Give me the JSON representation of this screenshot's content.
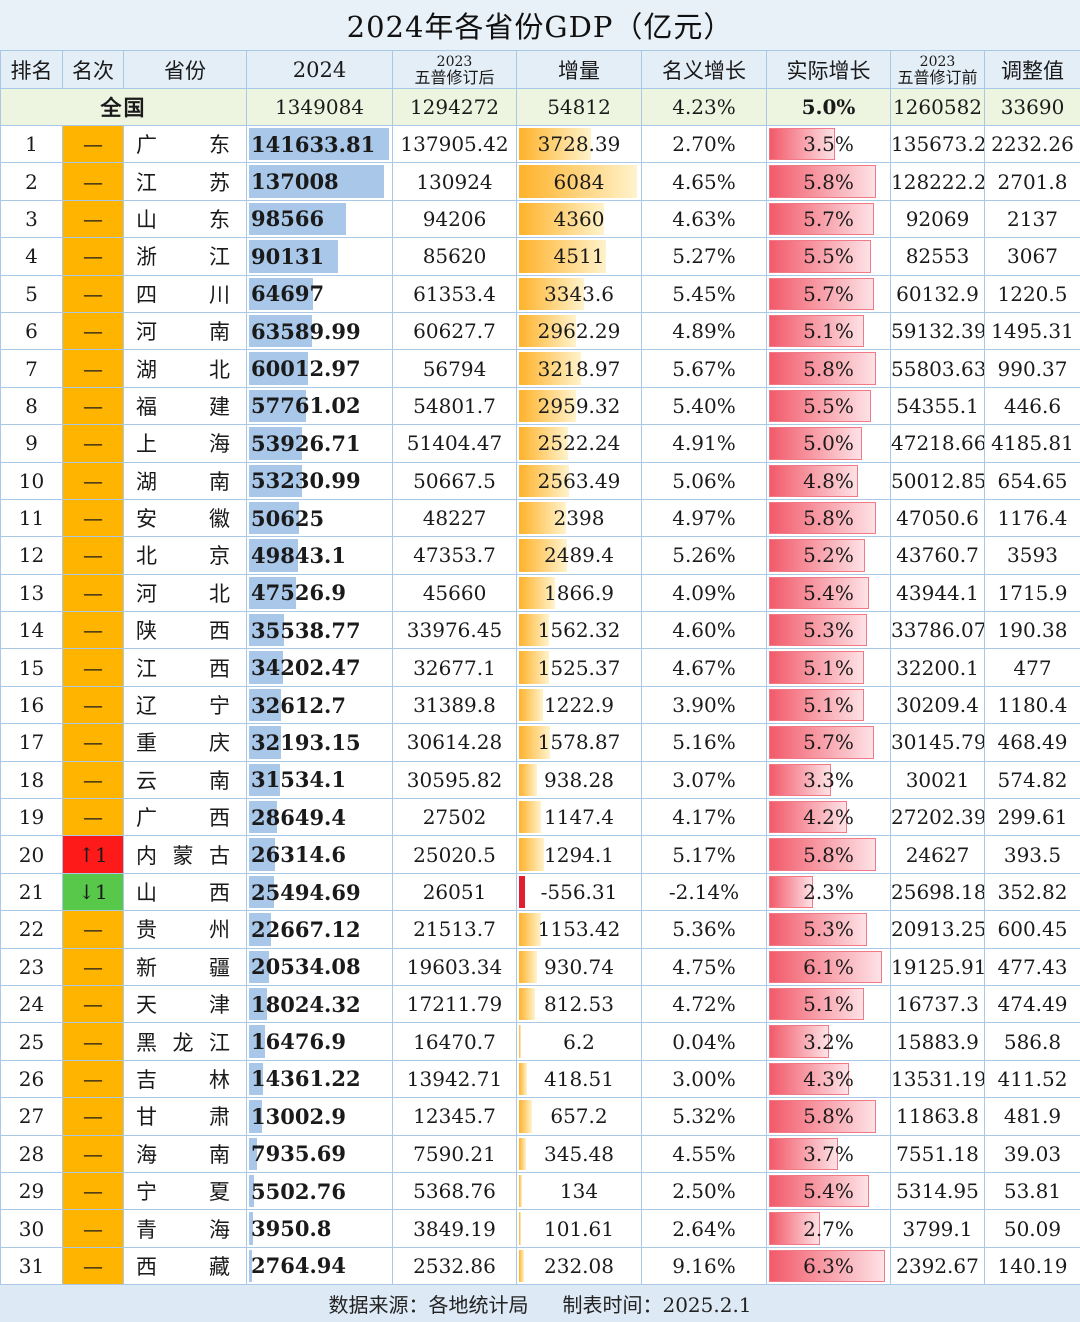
{
  "title": "2024年各省份GDP（亿元）",
  "headers": {
    "rank": "排名",
    "change": "名次",
    "province": "省份",
    "gdp2024": "2024",
    "rev_year": "2023",
    "rev_sub": "五普修订后",
    "increase": "增量",
    "nominal": "名义增长",
    "real": "实际增长",
    "pre_year": "2023",
    "pre_sub": "五普修订前",
    "adjust": "调整值"
  },
  "national": {
    "label": "全国",
    "gdp2024": "1349084",
    "gdp2023_revised": "1294272",
    "increase": "54812",
    "nominal": "4.23%",
    "real": "5.0%",
    "gdp2023_pre": "1260582",
    "adjust": "33690"
  },
  "colors": {
    "gdp_bar": "#a9c7e8",
    "increase_bar": "#ffb22a",
    "real_bar": "#f25a6a",
    "rank_same": "#ffb400",
    "rank_up": "#ff1a1a",
    "rank_down": "#58c84a"
  },
  "chart_data": {
    "type": "table",
    "rows": [
      {
        "rank": "1",
        "change": "—",
        "province": "广东",
        "gdp2024": "141633.81",
        "gdp2023_revised": "137905.42",
        "increase": "3728.39",
        "nominal": "2.70%",
        "real": "3.5%",
        "gdp2023_pre": "135673.2",
        "adjust": "2232.26"
      },
      {
        "rank": "2",
        "change": "—",
        "province": "江苏",
        "gdp2024": "137008",
        "gdp2023_revised": "130924",
        "increase": "6084",
        "nominal": "4.65%",
        "real": "5.8%",
        "gdp2023_pre": "128222.2",
        "adjust": "2701.8"
      },
      {
        "rank": "3",
        "change": "—",
        "province": "山东",
        "gdp2024": "98566",
        "gdp2023_revised": "94206",
        "increase": "4360",
        "nominal": "4.63%",
        "real": "5.7%",
        "gdp2023_pre": "92069",
        "adjust": "2137"
      },
      {
        "rank": "4",
        "change": "—",
        "province": "浙江",
        "gdp2024": "90131",
        "gdp2023_revised": "85620",
        "increase": "4511",
        "nominal": "5.27%",
        "real": "5.5%",
        "gdp2023_pre": "82553",
        "adjust": "3067"
      },
      {
        "rank": "5",
        "change": "—",
        "province": "四川",
        "gdp2024": "64697",
        "gdp2023_revised": "61353.4",
        "increase": "3343.6",
        "nominal": "5.45%",
        "real": "5.7%",
        "gdp2023_pre": "60132.9",
        "adjust": "1220.5"
      },
      {
        "rank": "6",
        "change": "—",
        "province": "河南",
        "gdp2024": "63589.99",
        "gdp2023_revised": "60627.7",
        "increase": "2962.29",
        "nominal": "4.89%",
        "real": "5.1%",
        "gdp2023_pre": "59132.39",
        "adjust": "1495.31"
      },
      {
        "rank": "7",
        "change": "—",
        "province": "湖北",
        "gdp2024": "60012.97",
        "gdp2023_revised": "56794",
        "increase": "3218.97",
        "nominal": "5.67%",
        "real": "5.8%",
        "gdp2023_pre": "55803.63",
        "adjust": "990.37"
      },
      {
        "rank": "8",
        "change": "—",
        "province": "福建",
        "gdp2024": "57761.02",
        "gdp2023_revised": "54801.7",
        "increase": "2959.32",
        "nominal": "5.40%",
        "real": "5.5%",
        "gdp2023_pre": "54355.1",
        "adjust": "446.6"
      },
      {
        "rank": "9",
        "change": "—",
        "province": "上海",
        "gdp2024": "53926.71",
        "gdp2023_revised": "51404.47",
        "increase": "2522.24",
        "nominal": "4.91%",
        "real": "5.0%",
        "gdp2023_pre": "47218.66",
        "adjust": "4185.81"
      },
      {
        "rank": "10",
        "change": "—",
        "province": "湖南",
        "gdp2024": "53230.99",
        "gdp2023_revised": "50667.5",
        "increase": "2563.49",
        "nominal": "5.06%",
        "real": "4.8%",
        "gdp2023_pre": "50012.85",
        "adjust": "654.65"
      },
      {
        "rank": "11",
        "change": "—",
        "province": "安徽",
        "gdp2024": "50625",
        "gdp2023_revised": "48227",
        "increase": "2398",
        "nominal": "4.97%",
        "real": "5.8%",
        "gdp2023_pre": "47050.6",
        "adjust": "1176.4"
      },
      {
        "rank": "12",
        "change": "—",
        "province": "北京",
        "gdp2024": "49843.1",
        "gdp2023_revised": "47353.7",
        "increase": "2489.4",
        "nominal": "5.26%",
        "real": "5.2%",
        "gdp2023_pre": "43760.7",
        "adjust": "3593"
      },
      {
        "rank": "13",
        "change": "—",
        "province": "河北",
        "gdp2024": "47526.9",
        "gdp2023_revised": "45660",
        "increase": "1866.9",
        "nominal": "4.09%",
        "real": "5.4%",
        "gdp2023_pre": "43944.1",
        "adjust": "1715.9"
      },
      {
        "rank": "14",
        "change": "—",
        "province": "陕西",
        "gdp2024": "35538.77",
        "gdp2023_revised": "33976.45",
        "increase": "1562.32",
        "nominal": "4.60%",
        "real": "5.3%",
        "gdp2023_pre": "33786.07",
        "adjust": "190.38"
      },
      {
        "rank": "15",
        "change": "—",
        "province": "江西",
        "gdp2024": "34202.47",
        "gdp2023_revised": "32677.1",
        "increase": "1525.37",
        "nominal": "4.67%",
        "real": "5.1%",
        "gdp2023_pre": "32200.1",
        "adjust": "477"
      },
      {
        "rank": "16",
        "change": "—",
        "province": "辽宁",
        "gdp2024": "32612.7",
        "gdp2023_revised": "31389.8",
        "increase": "1222.9",
        "nominal": "3.90%",
        "real": "5.1%",
        "gdp2023_pre": "30209.4",
        "adjust": "1180.4"
      },
      {
        "rank": "17",
        "change": "—",
        "province": "重庆",
        "gdp2024": "32193.15",
        "gdp2023_revised": "30614.28",
        "increase": "1578.87",
        "nominal": "5.16%",
        "real": "5.7%",
        "gdp2023_pre": "30145.79",
        "adjust": "468.49"
      },
      {
        "rank": "18",
        "change": "—",
        "province": "云南",
        "gdp2024": "31534.1",
        "gdp2023_revised": "30595.82",
        "increase": "938.28",
        "nominal": "3.07%",
        "real": "3.3%",
        "gdp2023_pre": "30021",
        "adjust": "574.82"
      },
      {
        "rank": "19",
        "change": "—",
        "province": "广西",
        "gdp2024": "28649.4",
        "gdp2023_revised": "27502",
        "increase": "1147.4",
        "nominal": "4.17%",
        "real": "4.2%",
        "gdp2023_pre": "27202.39",
        "adjust": "299.61"
      },
      {
        "rank": "20",
        "change": "↑1",
        "province": "内蒙古",
        "gdp2024": "26314.6",
        "gdp2023_revised": "25020.5",
        "increase": "1294.1",
        "nominal": "5.17%",
        "real": "5.8%",
        "gdp2023_pre": "24627",
        "adjust": "393.5"
      },
      {
        "rank": "21",
        "change": "↓1",
        "province": "山西",
        "gdp2024": "25494.69",
        "gdp2023_revised": "26051",
        "increase": "-556.31",
        "nominal": "-2.14%",
        "real": "2.3%",
        "gdp2023_pre": "25698.18",
        "adjust": "352.82"
      },
      {
        "rank": "22",
        "change": "—",
        "province": "贵州",
        "gdp2024": "22667.12",
        "gdp2023_revised": "21513.7",
        "increase": "1153.42",
        "nominal": "5.36%",
        "real": "5.3%",
        "gdp2023_pre": "20913.25",
        "adjust": "600.45"
      },
      {
        "rank": "23",
        "change": "—",
        "province": "新疆",
        "gdp2024": "20534.08",
        "gdp2023_revised": "19603.34",
        "increase": "930.74",
        "nominal": "4.75%",
        "real": "6.1%",
        "gdp2023_pre": "19125.91",
        "adjust": "477.43"
      },
      {
        "rank": "24",
        "change": "—",
        "province": "天津",
        "gdp2024": "18024.32",
        "gdp2023_revised": "17211.79",
        "increase": "812.53",
        "nominal": "4.72%",
        "real": "5.1%",
        "gdp2023_pre": "16737.3",
        "adjust": "474.49"
      },
      {
        "rank": "25",
        "change": "—",
        "province": "黑龙江",
        "gdp2024": "16476.9",
        "gdp2023_revised": "16470.7",
        "increase": "6.2",
        "nominal": "0.04%",
        "real": "3.2%",
        "gdp2023_pre": "15883.9",
        "adjust": "586.8"
      },
      {
        "rank": "26",
        "change": "—",
        "province": "吉林",
        "gdp2024": "14361.22",
        "gdp2023_revised": "13942.71",
        "increase": "418.51",
        "nominal": "3.00%",
        "real": "4.3%",
        "gdp2023_pre": "13531.19",
        "adjust": "411.52"
      },
      {
        "rank": "27",
        "change": "—",
        "province": "甘肃",
        "gdp2024": "13002.9",
        "gdp2023_revised": "12345.7",
        "increase": "657.2",
        "nominal": "5.32%",
        "real": "5.8%",
        "gdp2023_pre": "11863.8",
        "adjust": "481.9"
      },
      {
        "rank": "28",
        "change": "—",
        "province": "海南",
        "gdp2024": "7935.69",
        "gdp2023_revised": "7590.21",
        "increase": "345.48",
        "nominal": "4.55%",
        "real": "3.7%",
        "gdp2023_pre": "7551.18",
        "adjust": "39.03"
      },
      {
        "rank": "29",
        "change": "—",
        "province": "宁夏",
        "gdp2024": "5502.76",
        "gdp2023_revised": "5368.76",
        "increase": "134",
        "nominal": "2.50%",
        "real": "5.4%",
        "gdp2023_pre": "5314.95",
        "adjust": "53.81"
      },
      {
        "rank": "30",
        "change": "—",
        "province": "青海",
        "gdp2024": "3950.8",
        "gdp2023_revised": "3849.19",
        "increase": "101.61",
        "nominal": "2.64%",
        "real": "2.7%",
        "gdp2023_pre": "3799.1",
        "adjust": "50.09"
      },
      {
        "rank": "31",
        "change": "—",
        "province": "西藏",
        "gdp2024": "2764.94",
        "gdp2023_revised": "2532.86",
        "increase": "232.08",
        "nominal": "9.16%",
        "real": "6.3%",
        "gdp2023_pre": "2392.67",
        "adjust": "140.19"
      }
    ]
  },
  "footer": {
    "source": "数据来源：各地统计局",
    "date": "制表时间：2025.2.1"
  }
}
